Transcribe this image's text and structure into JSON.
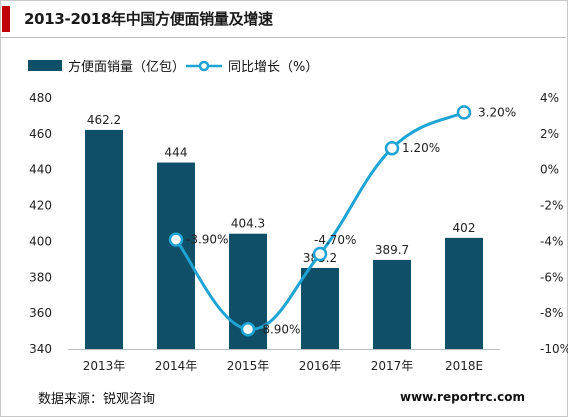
{
  "title": "2013-2018年中国方便面销量及增速",
  "source": "数据来源：锐观咨询",
  "watermark": "www.reportrc.com",
  "colors": {
    "bar": "#0f5068",
    "line": "#1ea4d4",
    "accent": "#c00000"
  },
  "chart_data": {
    "type": "bar+line",
    "categories": [
      "2013年",
      "2014年",
      "2015年",
      "2016年",
      "2017年",
      "2018E"
    ],
    "series": [
      {
        "name": "方便面销量（亿包）",
        "type": "bar",
        "axis": "left",
        "values": [
          462.2,
          444,
          404.3,
          385.2,
          389.7,
          402
        ],
        "labels": [
          "462.2",
          "444",
          "404.3",
          "385.2",
          "389.7",
          "402"
        ]
      },
      {
        "name": "同比增长（%）",
        "type": "line",
        "axis": "right",
        "values": [
          null,
          -3.9,
          -8.9,
          -4.7,
          1.2,
          3.2
        ],
        "labels": [
          "",
          "-3.90%",
          "-8.90%",
          "-4.70%",
          "1.20%",
          "3.20%"
        ]
      }
    ],
    "y_left": {
      "min": 340,
      "max": 480,
      "ticks": [
        "340",
        "360",
        "380",
        "400",
        "420",
        "440",
        "460",
        "480"
      ]
    },
    "y_right": {
      "min": -10,
      "max": 4,
      "ticks": [
        "-10%",
        "-8%",
        "-6%",
        "-4%",
        "-2%",
        "0%",
        "2%",
        "4%"
      ]
    },
    "legend_position": "top-left",
    "grid": false
  }
}
